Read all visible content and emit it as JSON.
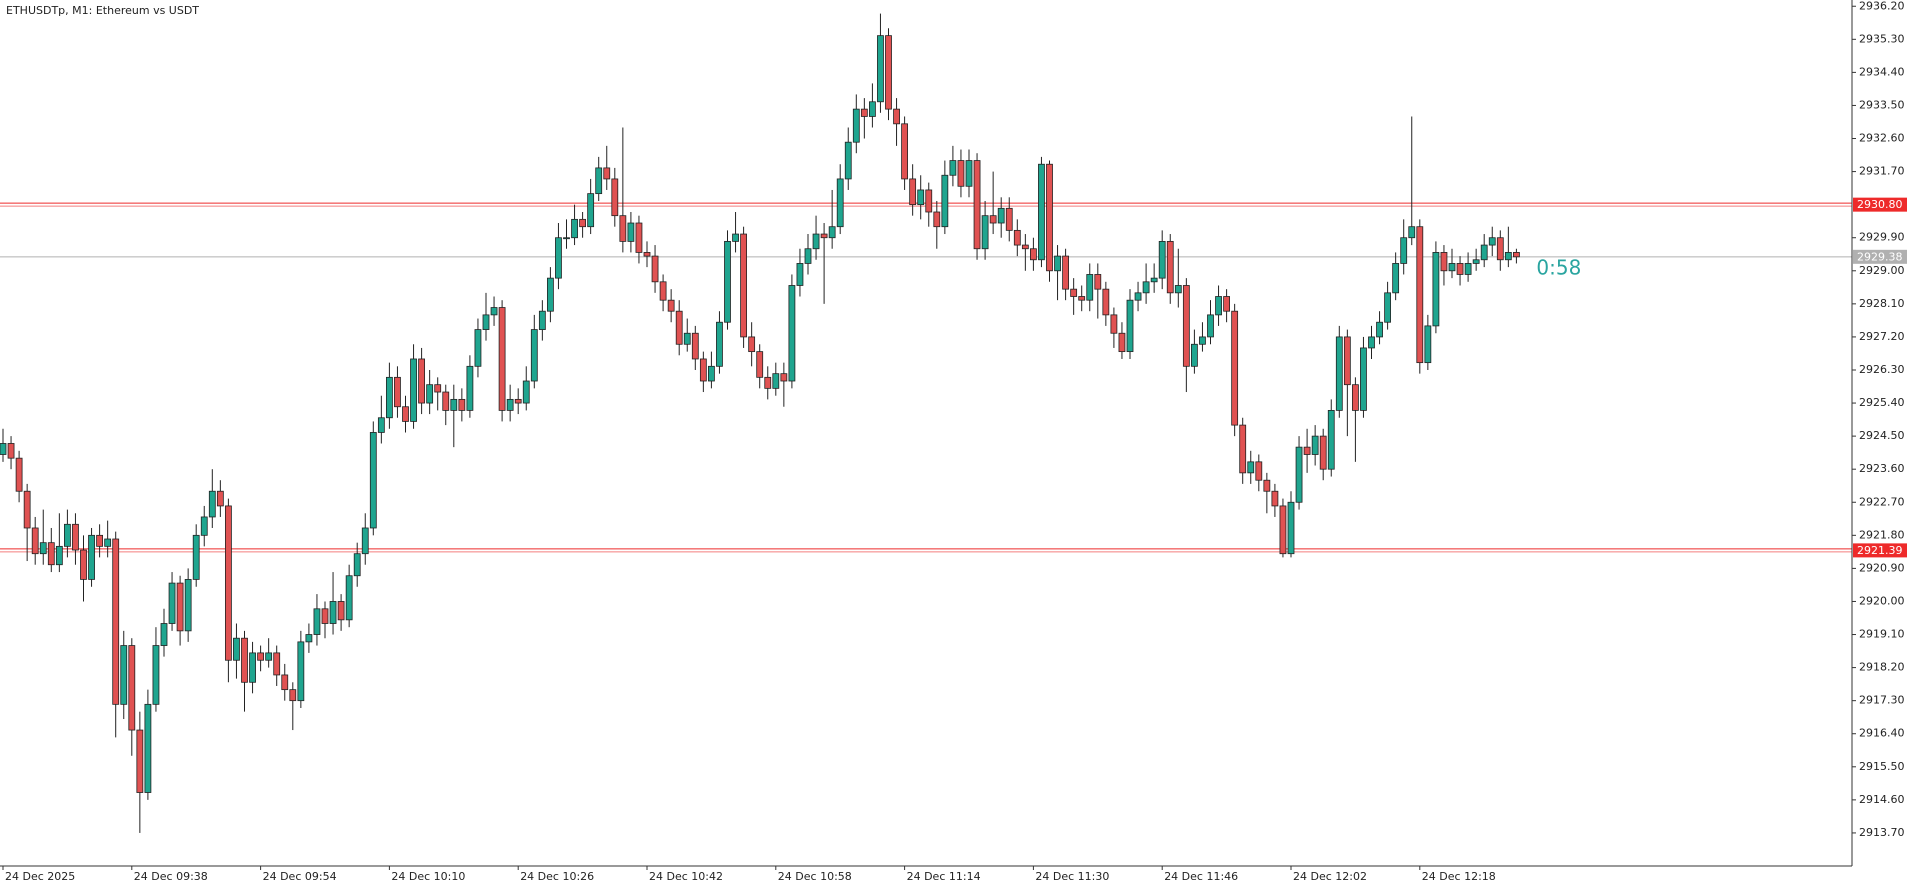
{
  "chart_data": {
    "type": "candlestick",
    "title": "ETHUSDTp, M1:  Ethereum vs USDT",
    "categories": [
      "24 Dec 2025",
      null,
      null,
      null,
      null,
      null,
      null,
      null,
      null,
      null,
      null,
      null,
      null,
      null,
      null,
      null,
      "24 Dec 09:38",
      null,
      null,
      null,
      null,
      null,
      null,
      null,
      null,
      null,
      null,
      null,
      null,
      null,
      null,
      null,
      "24 Dec 09:54",
      null,
      null,
      null,
      null,
      null,
      null,
      null,
      null,
      null,
      null,
      null,
      null,
      null,
      null,
      null,
      "24 Dec 10:10",
      null,
      null,
      null,
      null,
      null,
      null,
      null,
      null,
      null,
      null,
      null,
      null,
      null,
      null,
      null,
      "24 Dec 10:26",
      null,
      null,
      null,
      null,
      null,
      null,
      null,
      null,
      null,
      null,
      null,
      null,
      null,
      null,
      null,
      "24 Dec 10:42",
      null,
      null,
      null,
      null,
      null,
      null,
      null,
      null,
      null,
      null,
      null,
      null,
      null,
      null,
      null,
      "24 Dec 10:58",
      null,
      null,
      null,
      null,
      null,
      null,
      null,
      null,
      null,
      null,
      null,
      null,
      null,
      null,
      null,
      "24 Dec 11:14",
      null,
      null,
      null,
      null,
      null,
      null,
      null,
      null,
      null,
      null,
      null,
      null,
      null,
      null,
      null,
      "24 Dec 11:30",
      null,
      null,
      null,
      null,
      null,
      null,
      null,
      null,
      null,
      null,
      null,
      null,
      null,
      null,
      null,
      "24 Dec 11:46",
      null,
      null,
      null,
      null,
      null,
      null,
      null,
      null,
      null,
      null,
      null,
      null,
      null,
      null,
      null,
      "24 Dec 12:02",
      null,
      null,
      null,
      null,
      null,
      null,
      null,
      null,
      null,
      null,
      null,
      null,
      null,
      null,
      null,
      "24 Dec 12:18",
      null,
      null,
      null,
      null,
      null,
      null,
      null,
      null,
      null,
      null,
      null,
      null
    ],
    "open": [
      2924.0,
      2924.3,
      2923.9,
      2923.0,
      2922.0,
      2921.3,
      2921.6,
      2921.0,
      2921.5,
      2922.1,
      2921.4,
      2920.6,
      2921.8,
      2921.5,
      2921.7,
      2917.2,
      2918.8,
      2916.5,
      2914.8,
      2917.2,
      2918.8,
      2919.4,
      2920.5,
      2919.2,
      2920.6,
      2921.8,
      2922.3,
      2923.0,
      2922.6,
      2918.4,
      2919.0,
      2917.8,
      2918.6,
      2918.4,
      2918.6,
      2918.0,
      2917.6,
      2917.3,
      2918.9,
      2919.1,
      2919.8,
      2919.4,
      2920.0,
      2919.5,
      2920.7,
      2921.3,
      2922.0,
      2924.6,
      2925.0,
      2926.1,
      2925.3,
      2924.9,
      2926.6,
      2925.4,
      2925.9,
      2925.7,
      2925.2,
      2925.5,
      2925.2,
      2926.4,
      2927.4,
      2927.8,
      2928.0,
      2925.2,
      2925.5,
      2925.4,
      2926.0,
      2927.4,
      2927.9,
      2928.8,
      2929.9,
      2929.9,
      2930.4,
      2930.2,
      2931.1,
      2931.8,
      2931.5,
      2930.5,
      2929.8,
      2930.3,
      2929.5,
      2929.4,
      2928.7,
      2928.2,
      2927.9,
      2927.0,
      2927.3,
      2926.6,
      2926.0,
      2926.4,
      2927.6,
      2929.8,
      2930.0,
      2927.2,
      2926.8,
      2926.1,
      2925.8,
      2926.2,
      2926.0,
      2928.6,
      2929.2,
      2929.6,
      2930.0,
      2929.9,
      2930.2,
      2931.5,
      2932.5,
      2933.4,
      2933.2,
      2933.6,
      2935.4,
      2933.4,
      2933.0,
      2931.5,
      2930.8,
      2931.2,
      2930.6,
      2930.2,
      2931.6,
      2932.0,
      2931.3,
      2932.0,
      2929.6,
      2930.5,
      2930.3,
      2930.7,
      2930.1,
      2929.7,
      2929.6,
      2929.3,
      2931.9,
      2929.0,
      2929.4,
      2928.5,
      2928.3,
      2928.2,
      2928.9,
      2928.5,
      2927.8,
      2927.3,
      2926.8,
      2928.2,
      2928.4,
      2928.7,
      2928.8,
      2929.8,
      2928.4,
      2928.6,
      2926.4,
      2927.0,
      2927.2,
      2927.8,
      2928.3,
      2927.9,
      2924.8,
      2923.5,
      2923.8,
      2923.3,
      2923.0,
      2922.6,
      2921.3,
      2922.7,
      2924.2,
      2924.0,
      2924.5,
      2923.6,
      2925.2,
      2927.2,
      2925.9,
      2925.2,
      2926.9,
      2927.2,
      2927.6,
      2928.4,
      2929.2,
      2929.9,
      2930.2,
      2926.5,
      2927.5,
      2929.5,
      2929.0,
      2929.2,
      2928.9,
      2929.2,
      2929.3,
      2929.7,
      2929.9,
      2929.3,
      2929.5
    ],
    "high": [
      2924.7,
      2924.5,
      2924.1,
      2923.2,
      2922.3,
      2922.5,
      2922.0,
      2922.4,
      2922.5,
      2922.4,
      2921.8,
      2922.0,
      2922.1,
      2922.2,
      2921.9,
      2919.2,
      2919.0,
      2917.0,
      2917.6,
      2919.3,
      2919.8,
      2920.8,
      2920.7,
      2920.9,
      2922.1,
      2922.6,
      2923.6,
      2923.3,
      2922.8,
      2919.4,
      2919.2,
      2918.9,
      2918.8,
      2919.0,
      2918.8,
      2918.3,
      2917.8,
      2919.2,
      2919.4,
      2920.2,
      2920.0,
      2920.8,
      2920.2,
      2921.0,
      2921.6,
      2922.4,
      2924.9,
      2925.6,
      2926.5,
      2926.4,
      2925.6,
      2927.0,
      2926.9,
      2926.3,
      2926.1,
      2925.9,
      2925.9,
      2925.8,
      2926.7,
      2927.7,
      2928.4,
      2928.3,
      2928.2,
      2925.9,
      2925.8,
      2926.4,
      2927.8,
      2928.2,
      2929.1,
      2930.3,
      2930.4,
      2930.8,
      2930.6,
      2931.5,
      2932.1,
      2932.4,
      2931.8,
      2932.9,
      2930.6,
      2930.5,
      2929.8,
      2929.7,
      2928.9,
      2928.5,
      2928.2,
      2927.7,
      2927.5,
      2926.8,
      2926.8,
      2927.9,
      2930.1,
      2930.6,
      2930.2,
      2927.6,
      2927.0,
      2926.4,
      2926.5,
      2926.5,
      2928.9,
      2929.6,
      2930.0,
      2930.5,
      2930.3,
      2931.2,
      2931.9,
      2932.9,
      2933.8,
      2933.7,
      2934.1,
      2936.0,
      2935.6,
      2933.7,
      2933.2,
      2931.9,
      2931.6,
      2931.4,
      2930.9,
      2932.0,
      2932.4,
      2932.3,
      2932.3,
      2932.2,
      2930.9,
      2931.7,
      2931.0,
      2931.0,
      2930.4,
      2930.0,
      2929.9,
      2932.1,
      2932.0,
      2929.7,
      2929.6,
      2928.8,
      2928.6,
      2929.2,
      2929.2,
      2928.7,
      2928.0,
      2927.6,
      2928.5,
      2928.7,
      2929.2,
      2929.2,
      2930.1,
      2930.0,
      2929.6,
      2928.8,
      2927.4,
      2927.6,
      2928.2,
      2928.6,
      2928.5,
      2928.1,
      2925.0,
      2924.1,
      2924.0,
      2923.5,
      2923.2,
      2922.8,
      2923.0,
      2924.5,
      2924.7,
      2924.8,
      2924.7,
      2925.5,
      2927.5,
      2927.4,
      2926.1,
      2927.2,
      2927.5,
      2927.9,
      2928.7,
      2929.5,
      2930.4,
      2933.2,
      2930.4,
      2927.8,
      2929.8,
      2929.7,
      2929.6,
      2929.4,
      2929.5,
      2929.6,
      2930.0,
      2930.2,
      2930.1,
      2930.2,
      2929.6
    ],
    "low": [
      2923.8,
      2923.6,
      2922.7,
      2921.1,
      2921.0,
      2921.0,
      2920.8,
      2920.8,
      2921.2,
      2921.0,
      2920.0,
      2920.4,
      2921.2,
      2921.2,
      2916.3,
      2916.8,
      2915.8,
      2913.7,
      2914.6,
      2917.0,
      2918.5,
      2919.2,
      2918.8,
      2918.9,
      2920.4,
      2921.5,
      2922.0,
      2922.3,
      2917.8,
      2917.9,
      2917.0,
      2917.5,
      2918.1,
      2918.2,
      2917.7,
      2917.3,
      2916.5,
      2917.1,
      2918.6,
      2918.8,
      2919.0,
      2919.1,
      2919.2,
      2919.3,
      2920.4,
      2921.0,
      2921.8,
      2924.3,
      2924.7,
      2925.0,
      2924.6,
      2924.7,
      2925.1,
      2925.1,
      2925.2,
      2924.8,
      2924.2,
      2924.9,
      2925.0,
      2926.1,
      2927.1,
      2927.5,
      2924.9,
      2924.9,
      2925.1,
      2925.2,
      2925.8,
      2927.1,
      2927.6,
      2928.5,
      2929.6,
      2929.7,
      2929.9,
      2930.0,
      2930.9,
      2931.2,
      2930.2,
      2929.5,
      2929.5,
      2929.2,
      2929.1,
      2928.4,
      2927.9,
      2927.6,
      2926.7,
      2926.8,
      2926.3,
      2925.7,
      2925.8,
      2926.2,
      2927.4,
      2929.5,
      2926.9,
      2926.4,
      2925.8,
      2925.5,
      2925.6,
      2925.3,
      2925.8,
      2928.3,
      2928.9,
      2929.3,
      2928.1,
      2929.6,
      2930.0,
      2931.2,
      2932.2,
      2932.6,
      2932.9,
      2933.3,
      2933.1,
      2932.4,
      2931.2,
      2930.5,
      2930.4,
      2930.2,
      2929.6,
      2930.0,
      2931.3,
      2931.0,
      2931.0,
      2929.3,
      2929.3,
      2930.0,
      2929.9,
      2929.8,
      2929.4,
      2929.0,
      2929.0,
      2929.1,
      2928.7,
      2928.2,
      2928.2,
      2927.8,
      2927.9,
      2927.9,
      2927.7,
      2927.5,
      2926.9,
      2926.6,
      2926.6,
      2927.9,
      2928.1,
      2928.4,
      2928.5,
      2928.1,
      2928.0,
      2925.7,
      2926.2,
      2926.8,
      2927.0,
      2927.5,
      2927.6,
      2924.5,
      2923.2,
      2923.2,
      2923.0,
      2922.4,
      2922.3,
      2921.2,
      2921.2,
      2922.5,
      2923.5,
      2923.7,
      2923.3,
      2923.4,
      2925.0,
      2924.5,
      2923.8,
      2925.0,
      2926.6,
      2927.0,
      2927.4,
      2928.2,
      2928.9,
      2929.7,
      2926.2,
      2926.3,
      2927.3,
      2928.6,
      2928.8,
      2928.6,
      2928.7,
      2929.0,
      2929.1,
      2929.4,
      2929.0,
      2929.1,
      2929.2
    ],
    "close": [
      2924.3,
      2923.9,
      2923.0,
      2922.0,
      2921.3,
      2921.6,
      2921.0,
      2921.5,
      2922.1,
      2921.4,
      2920.6,
      2921.8,
      2921.5,
      2921.7,
      2917.2,
      2918.8,
      2916.5,
      2914.8,
      2917.2,
      2918.8,
      2919.4,
      2920.5,
      2919.2,
      2920.6,
      2921.8,
      2922.3,
      2923.0,
      2922.6,
      2918.4,
      2919.0,
      2917.8,
      2918.6,
      2918.4,
      2918.6,
      2918.0,
      2917.6,
      2917.3,
      2918.9,
      2919.1,
      2919.8,
      2919.4,
      2920.0,
      2919.5,
      2920.7,
      2921.3,
      2922.0,
      2924.6,
      2925.0,
      2926.1,
      2925.3,
      2924.9,
      2926.6,
      2925.4,
      2925.9,
      2925.7,
      2925.2,
      2925.5,
      2925.2,
      2926.4,
      2927.4,
      2927.8,
      2928.0,
      2925.2,
      2925.5,
      2925.4,
      2926.0,
      2927.4,
      2927.9,
      2928.8,
      2929.9,
      2929.9,
      2930.4,
      2930.2,
      2931.1,
      2931.8,
      2931.5,
      2930.5,
      2929.8,
      2930.3,
      2929.5,
      2929.4,
      2928.7,
      2928.2,
      2927.9,
      2927.0,
      2927.3,
      2926.6,
      2926.0,
      2926.4,
      2927.6,
      2929.8,
      2930.0,
      2927.2,
      2926.8,
      2926.1,
      2925.8,
      2926.2,
      2926.0,
      2928.6,
      2929.2,
      2929.6,
      2930.0,
      2929.9,
      2930.2,
      2931.5,
      2932.5,
      2933.4,
      2933.2,
      2933.6,
      2935.4,
      2933.4,
      2933.0,
      2931.5,
      2930.8,
      2931.2,
      2930.6,
      2930.2,
      2931.6,
      2932.0,
      2931.3,
      2932.0,
      2929.6,
      2930.5,
      2930.3,
      2930.7,
      2930.1,
      2929.7,
      2929.6,
      2929.3,
      2931.9,
      2929.0,
      2929.4,
      2928.5,
      2928.3,
      2928.2,
      2928.9,
      2928.5,
      2927.8,
      2927.3,
      2926.8,
      2928.2,
      2928.4,
      2928.7,
      2928.8,
      2929.8,
      2928.4,
      2928.6,
      2926.4,
      2927.0,
      2927.2,
      2927.8,
      2928.3,
      2927.9,
      2924.8,
      2923.5,
      2923.8,
      2923.3,
      2923.0,
      2922.6,
      2921.3,
      2922.7,
      2924.2,
      2924.0,
      2924.5,
      2923.6,
      2925.2,
      2927.2,
      2925.9,
      2925.2,
      2926.9,
      2927.2,
      2927.6,
      2928.4,
      2929.2,
      2929.9,
      2930.2,
      2926.5,
      2927.5,
      2929.5,
      2929.0,
      2929.2,
      2928.9,
      2929.2,
      2929.3,
      2929.7,
      2929.9,
      2929.3,
      2929.5,
      2929.38
    ],
    "up_color": "#1fa58f",
    "down_color": "#e05252",
    "ylim": [
      2912.8,
      2936.37
    ],
    "yticks": [
      {
        "value": 2936.2,
        "label": "2936.20"
      },
      {
        "value": 2935.3,
        "label": "2935.30"
      },
      {
        "value": 2934.4,
        "label": "2934.40"
      },
      {
        "value": 2933.5,
        "label": "2933.50"
      },
      {
        "value": 2932.6,
        "label": "2932.60"
      },
      {
        "value": 2931.7,
        "label": "2931.70"
      },
      {
        "value": 2929.9,
        "label": "2929.90"
      },
      {
        "value": 2929.0,
        "label": "2929.00"
      },
      {
        "value": 2928.1,
        "label": "2928.10"
      },
      {
        "value": 2927.2,
        "label": "2927.20"
      },
      {
        "value": 2926.3,
        "label": "2926.30"
      },
      {
        "value": 2925.4,
        "label": "2925.40"
      },
      {
        "value": 2924.5,
        "label": "2924.50"
      },
      {
        "value": 2923.6,
        "label": "2923.60"
      },
      {
        "value": 2922.7,
        "label": "2922.70"
      },
      {
        "value": 2921.8,
        "label": "2921.80"
      },
      {
        "value": 2920.9,
        "label": "2920.90"
      },
      {
        "value": 2920.0,
        "label": "2920.00"
      },
      {
        "value": 2919.1,
        "label": "2919.10"
      },
      {
        "value": 2918.2,
        "label": "2918.20"
      },
      {
        "value": 2917.3,
        "label": "2917.30"
      },
      {
        "value": 2916.4,
        "label": "2916.40"
      },
      {
        "value": 2915.5,
        "label": "2915.50"
      },
      {
        "value": 2914.6,
        "label": "2914.60"
      },
      {
        "value": 2913.7,
        "label": "2913.70"
      }
    ],
    "levels": [
      {
        "value": 2930.8,
        "label": "2930.80",
        "color": "#ee2a2a"
      },
      {
        "value": 2921.39,
        "label": "2921.39",
        "color": "#ee2a2a"
      }
    ],
    "bid": {
      "value": 2929.38,
      "label": "2929.38",
      "color": "#b0b0b0"
    },
    "timer": "0:58",
    "grid": false
  }
}
